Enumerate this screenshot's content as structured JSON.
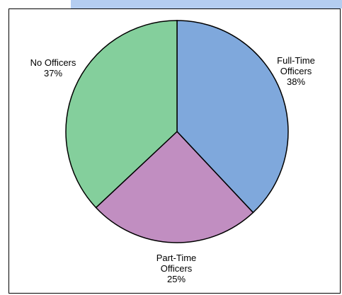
{
  "chart_data": {
    "type": "pie",
    "title": "",
    "slices": [
      {
        "lines": [
          "Full-Time",
          "Officers",
          "38%"
        ],
        "value": 38,
        "color": "#7fa8dc"
      },
      {
        "lines": [
          "Part-Time",
          "Officers",
          "25%"
        ],
        "value": 25,
        "color": "#c18ec1"
      },
      {
        "lines": [
          "No Officers",
          "37%"
        ],
        "value": 37,
        "color": "#84cf9c"
      }
    ],
    "start_angle_deg": 0,
    "direction": "clockwise",
    "legend": "none",
    "border_color": "#000000",
    "band_color": "#b4cdf0"
  }
}
